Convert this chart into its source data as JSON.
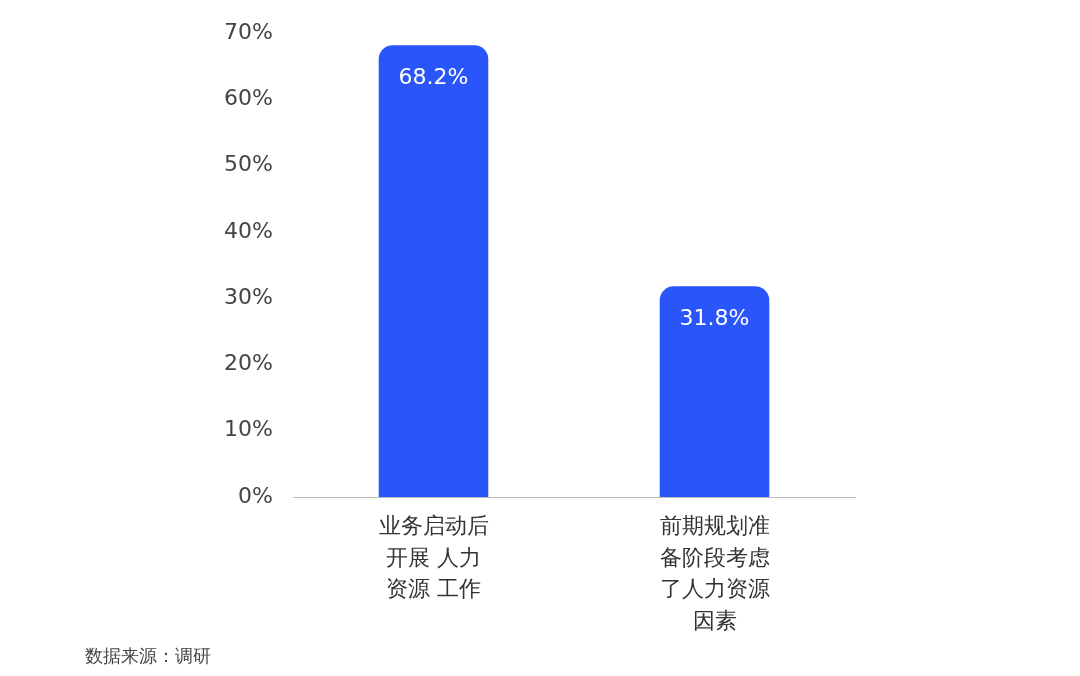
{
  "chart_data": {
    "type": "bar",
    "categories": [
      "业务启动后开展 人力资源 工作",
      "前期规划准备阶段考虑了人力资源因素"
    ],
    "values": [
      68.2,
      31.8
    ],
    "value_labels": [
      "68.2%",
      "31.8%"
    ],
    "color": "#2a55fb",
    "ylim": [
      0,
      70
    ],
    "yticks": [
      {
        "value": 0,
        "label": "0%"
      },
      {
        "value": 10,
        "label": "10%"
      },
      {
        "value": 20,
        "label": "20%"
      },
      {
        "value": 30,
        "label": "30%"
      },
      {
        "value": 40,
        "label": "40%"
      },
      {
        "value": 50,
        "label": "50%"
      },
      {
        "value": 60,
        "label": "60%"
      },
      {
        "value": 70,
        "label": "70%"
      }
    ],
    "grid": false,
    "legend": false,
    "annotations": [
      "数据来源：调研"
    ]
  }
}
